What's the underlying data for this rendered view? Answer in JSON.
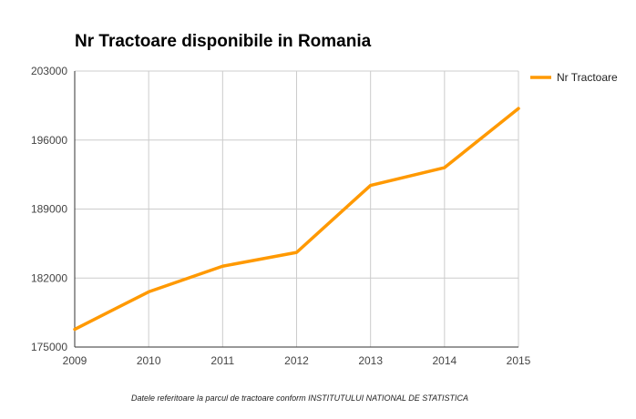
{
  "chart_data": {
    "type": "line",
    "title": "Nr Tractoare disponibile in Romania",
    "xlabel": "",
    "ylabel": "",
    "categories": [
      "2009",
      "2010",
      "2011",
      "2012",
      "2013",
      "2014",
      "2015"
    ],
    "series": [
      {
        "name": "Nr Tractoare",
        "values": [
          176800,
          180600,
          183200,
          184600,
          191400,
          193200,
          199200
        ],
        "color": "#ff9900"
      }
    ],
    "ylim": [
      175000,
      203000
    ],
    "yticks": [
      175000,
      182000,
      189000,
      196000,
      203000
    ],
    "ytick_labels": [
      "175000",
      "182000",
      "189000",
      "196000",
      "203000"
    ],
    "grid": true,
    "legend_position": "right",
    "gridline_color": "#cccccc",
    "axis_color": "#333333"
  },
  "footnote": "Datele referitoare la parcul de tractoare conform INSTITUTULUI NATIONAL DE STATISTICA"
}
